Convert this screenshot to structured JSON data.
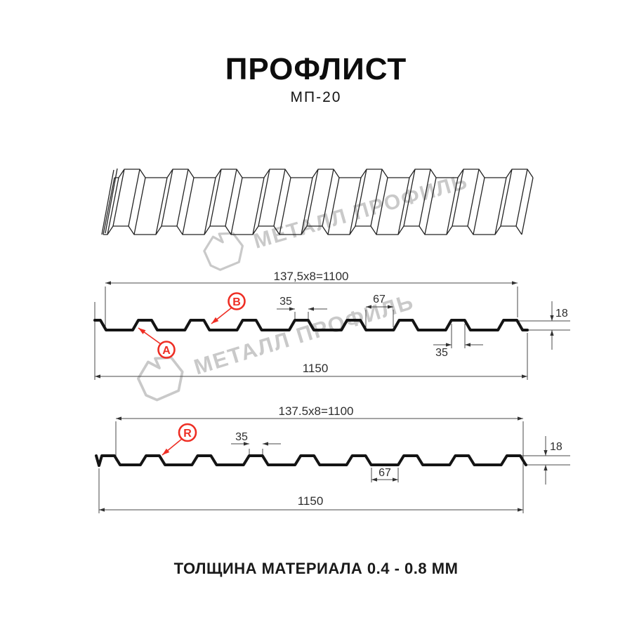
{
  "page": {
    "title": "ПРОФЛИСТ",
    "subtitle": "МП-20",
    "footer": "ТОЛЩИНА МАТЕРИАЛА 0.4 - 0.8 ММ"
  },
  "watermark": {
    "text": "МЕТАЛЛ ПРОФИЛЬ"
  },
  "colors": {
    "accent_red": "#ee2e24",
    "line_black": "#141414",
    "dim_gray": "#2e2e2e",
    "watermark_gray": "#c9c9c9"
  },
  "section_a": {
    "callout_a": "A",
    "callout_b": "B",
    "dim_top": "137,5x8=1100",
    "dim_rib_top": "35",
    "dim_valley": "67",
    "dim_rib_bottom": "35",
    "dim_height": "18",
    "dim_width": "1150"
  },
  "section_r": {
    "callout_r": "R",
    "dim_top": "137.5x8=1100",
    "dim_rib_top": "35",
    "dim_valley": "67",
    "dim_height": "18",
    "dim_width": "1150"
  }
}
